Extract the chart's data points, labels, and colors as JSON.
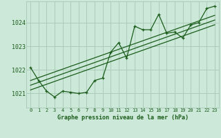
{
  "title": "Graphe pression niveau de la mer (hPa)",
  "bg_color": "#cce8d8",
  "grid_color": "#aaccb8",
  "line_color_main": "#1a5c1a",
  "line_color_smooth": "#2d7a2d",
  "text_color": "#1a5c1a",
  "xlim": [
    -0.5,
    23.5
  ],
  "ylim": [
    1020.4,
    1024.9
  ],
  "yticks": [
    1021,
    1022,
    1023,
    1024
  ],
  "xticks": [
    0,
    1,
    2,
    3,
    4,
    5,
    6,
    7,
    8,
    9,
    10,
    11,
    12,
    13,
    14,
    15,
    16,
    17,
    18,
    19,
    20,
    21,
    22,
    23
  ],
  "series_main": [
    1022.1,
    1021.55,
    1021.1,
    1020.85,
    1021.1,
    1021.05,
    1021.0,
    1021.05,
    1021.55,
    1021.65,
    1022.75,
    1023.15,
    1022.5,
    1023.85,
    1023.7,
    1023.7,
    1024.35,
    1023.55,
    1023.6,
    1023.35,
    1023.9,
    1024.0,
    1024.6,
    1024.7
  ],
  "smooth_lines": [
    [
      1021.15,
      1021.27,
      1021.39,
      1021.51,
      1021.63,
      1021.75,
      1021.87,
      1021.99,
      1022.11,
      1022.23,
      1022.35,
      1022.47,
      1022.59,
      1022.71,
      1022.83,
      1022.95,
      1023.07,
      1023.19,
      1023.31,
      1023.43,
      1023.55,
      1023.67,
      1023.79,
      1023.91
    ],
    [
      1021.35,
      1021.47,
      1021.59,
      1021.71,
      1021.83,
      1021.95,
      1022.07,
      1022.19,
      1022.31,
      1022.43,
      1022.55,
      1022.67,
      1022.79,
      1022.91,
      1023.03,
      1023.15,
      1023.27,
      1023.39,
      1023.51,
      1023.63,
      1023.75,
      1023.87,
      1023.99,
      1024.11
    ],
    [
      1021.55,
      1021.67,
      1021.79,
      1021.91,
      1022.03,
      1022.15,
      1022.27,
      1022.39,
      1022.51,
      1022.63,
      1022.75,
      1022.87,
      1022.99,
      1023.11,
      1023.23,
      1023.35,
      1023.47,
      1023.59,
      1023.71,
      1023.83,
      1023.95,
      1024.07,
      1024.19,
      1024.31
    ]
  ]
}
